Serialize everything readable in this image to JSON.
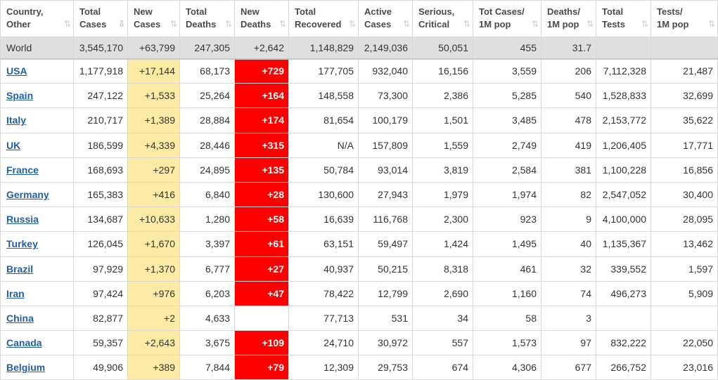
{
  "headers": [
    {
      "label": "Country,\nOther",
      "sort": "both"
    },
    {
      "label": "Total\nCases",
      "sort": "desc"
    },
    {
      "label": "New\nCases",
      "sort": "both"
    },
    {
      "label": "Total\nDeaths",
      "sort": "both"
    },
    {
      "label": "New\nDeaths",
      "sort": "both"
    },
    {
      "label": "Total\nRecovered",
      "sort": "both"
    },
    {
      "label": "Active\nCases",
      "sort": "both"
    },
    {
      "label": "Serious,\nCritical",
      "sort": "both"
    },
    {
      "label": "Tot Cases/\n1M pop",
      "sort": "both"
    },
    {
      "label": "Deaths/\n1M pop",
      "sort": "both"
    },
    {
      "label": "Total\nTests",
      "sort": "both"
    },
    {
      "label": "Tests/\n1M pop",
      "sort": "both"
    }
  ],
  "sort_icons": {
    "both": "⇅",
    "desc": "⇩"
  },
  "world": [
    "World",
    "3,545,170",
    "+63,799",
    "247,305",
    "+2,642",
    "1,148,829",
    "2,149,036",
    "50,051",
    "455",
    "31.7",
    "",
    ""
  ],
  "rows": [
    [
      "USA",
      "1,177,918",
      "+17,144",
      "68,173",
      "+729",
      "177,705",
      "932,040",
      "16,156",
      "3,559",
      "206",
      "7,112,328",
      "21,487"
    ],
    [
      "Spain",
      "247,122",
      "+1,533",
      "25,264",
      "+164",
      "148,558",
      "73,300",
      "2,386",
      "5,285",
      "540",
      "1,528,833",
      "32,699"
    ],
    [
      "Italy",
      "210,717",
      "+1,389",
      "28,884",
      "+174",
      "81,654",
      "100,179",
      "1,501",
      "3,485",
      "478",
      "2,153,772",
      "35,622"
    ],
    [
      "UK",
      "186,599",
      "+4,339",
      "28,446",
      "+315",
      "N/A",
      "157,809",
      "1,559",
      "2,749",
      "419",
      "1,206,405",
      "17,771"
    ],
    [
      "France",
      "168,693",
      "+297",
      "24,895",
      "+135",
      "50,784",
      "93,014",
      "3,819",
      "2,584",
      "381",
      "1,100,228",
      "16,856"
    ],
    [
      "Germany",
      "165,383",
      "+416",
      "6,840",
      "+28",
      "130,600",
      "27,943",
      "1,979",
      "1,974",
      "82",
      "2,547,052",
      "30,400"
    ],
    [
      "Russia",
      "134,687",
      "+10,633",
      "1,280",
      "+58",
      "16,639",
      "116,768",
      "2,300",
      "923",
      "9",
      "4,100,000",
      "28,095"
    ],
    [
      "Turkey",
      "126,045",
      "+1,670",
      "3,397",
      "+61",
      "63,151",
      "59,497",
      "1,424",
      "1,495",
      "40",
      "1,135,367",
      "13,462"
    ],
    [
      "Brazil",
      "97,929",
      "+1,370",
      "6,777",
      "+27",
      "40,937",
      "50,215",
      "8,318",
      "461",
      "32",
      "339,552",
      "1,597"
    ],
    [
      "Iran",
      "97,424",
      "+976",
      "6,203",
      "+47",
      "78,422",
      "12,799",
      "2,690",
      "1,160",
      "74",
      "496,273",
      "5,909"
    ],
    [
      "China",
      "82,877",
      "+2",
      "4,633",
      "",
      "77,713",
      "531",
      "34",
      "58",
      "3",
      "",
      ""
    ],
    [
      "Canada",
      "59,357",
      "+2,643",
      "3,675",
      "+109",
      "24,710",
      "30,972",
      "557",
      "1,573",
      "97",
      "832,222",
      "22,050"
    ],
    [
      "Belgium",
      "49,906",
      "+389",
      "7,844",
      "+79",
      "12,309",
      "29,753",
      "674",
      "4,306",
      "677",
      "266,752",
      "23,016"
    ]
  ],
  "colors": {
    "new_cases_bg": "#fdeaa5",
    "new_deaths_bg": "#ff0000",
    "world_bg": "#dfdfdf",
    "link": "#1f5fa8"
  }
}
